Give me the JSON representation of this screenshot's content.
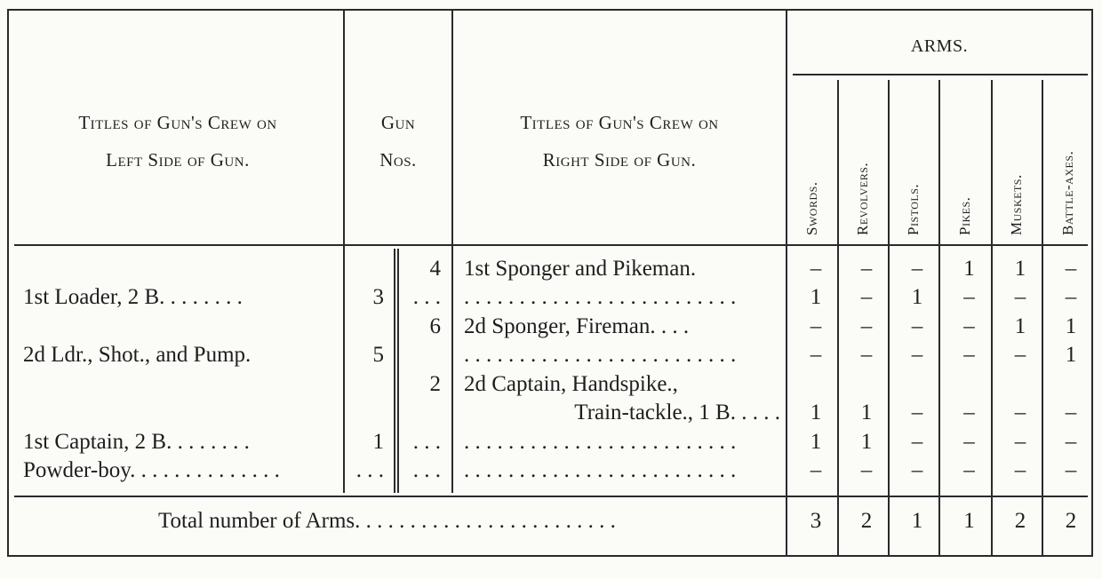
{
  "header": {
    "left_title_1": "Titles of Gun's Crew on",
    "left_title_2": "Left Side of Gun.",
    "gun_1": "Gun",
    "gun_2": "Nos.",
    "right_title_1": "Titles of Gun's Crew on",
    "right_title_2": "Right Side of Gun.",
    "arms": "ARMS.",
    "arms_columns": [
      "Swords.",
      "Revolvers.",
      "Pistols.",
      "Pikes.",
      "Muskets.",
      "Battle-axes."
    ]
  },
  "rows": [
    {
      "left": "",
      "gun_left": "",
      "gun_right": "4",
      "right": "1st Sponger and Pikeman.",
      "arms": [
        "–",
        "–",
        "–",
        "1",
        "1",
        "–"
      ]
    },
    {
      "left": "1st Loader, 2 B. . . . . . . .",
      "gun_left": "3",
      "gun_right": ". . .",
      "right": ". . . . . . . . . . . . . . . . . . . . . . . . .",
      "arms": [
        "1",
        "–",
        "1",
        "–",
        "–",
        "–"
      ]
    },
    {
      "left": "",
      "gun_left": "",
      "gun_right": "6",
      "right": "2d Sponger, Fireman. . . .",
      "arms": [
        "–",
        "–",
        "–",
        "–",
        "1",
        "1"
      ]
    },
    {
      "left": "2d Ldr., Shot., and Pump.",
      "gun_left": "5",
      "gun_right": "",
      "right": ". . . . . . . . . . . . . . . . . . . . . . . . .",
      "arms": [
        "–",
        "–",
        "–",
        "–",
        "–",
        "1"
      ]
    },
    {
      "left": "",
      "gun_left": "",
      "gun_right": "2",
      "right": "2d  Captain,  Handspike.,",
      "arms": [
        "",
        "",
        "",
        "",
        "",
        ""
      ]
    },
    {
      "left": "",
      "gun_left": "",
      "gun_right": "",
      "right": "Train-tackle., 1 B. . . . .",
      "arms": [
        "1",
        "1",
        "–",
        "–",
        "–",
        "–"
      ]
    },
    {
      "left": "1st Captain, 2 B. . . . . . . .",
      "gun_left": "1",
      "gun_right": ". . .",
      "right": ". . . . . . . . . . . . . . . . . . . . . . . . .",
      "arms": [
        "1",
        "1",
        "–",
        "–",
        "–",
        "–"
      ]
    },
    {
      "left": "Powder-boy. . . . . . . . . . . . . .",
      "gun_left": ". . .",
      "gun_right": ". . .",
      "right": ". . . . . . . . . . . . . . . . . . . . . . . . .",
      "arms": [
        "–",
        "–",
        "–",
        "–",
        "–",
        "–"
      ]
    }
  ],
  "total": {
    "label": "Total number of Arms. . . . . . . . . . . . . . . . . . . . . . . .",
    "values": [
      "3",
      "2",
      "1",
      "1",
      "2",
      "2"
    ]
  }
}
